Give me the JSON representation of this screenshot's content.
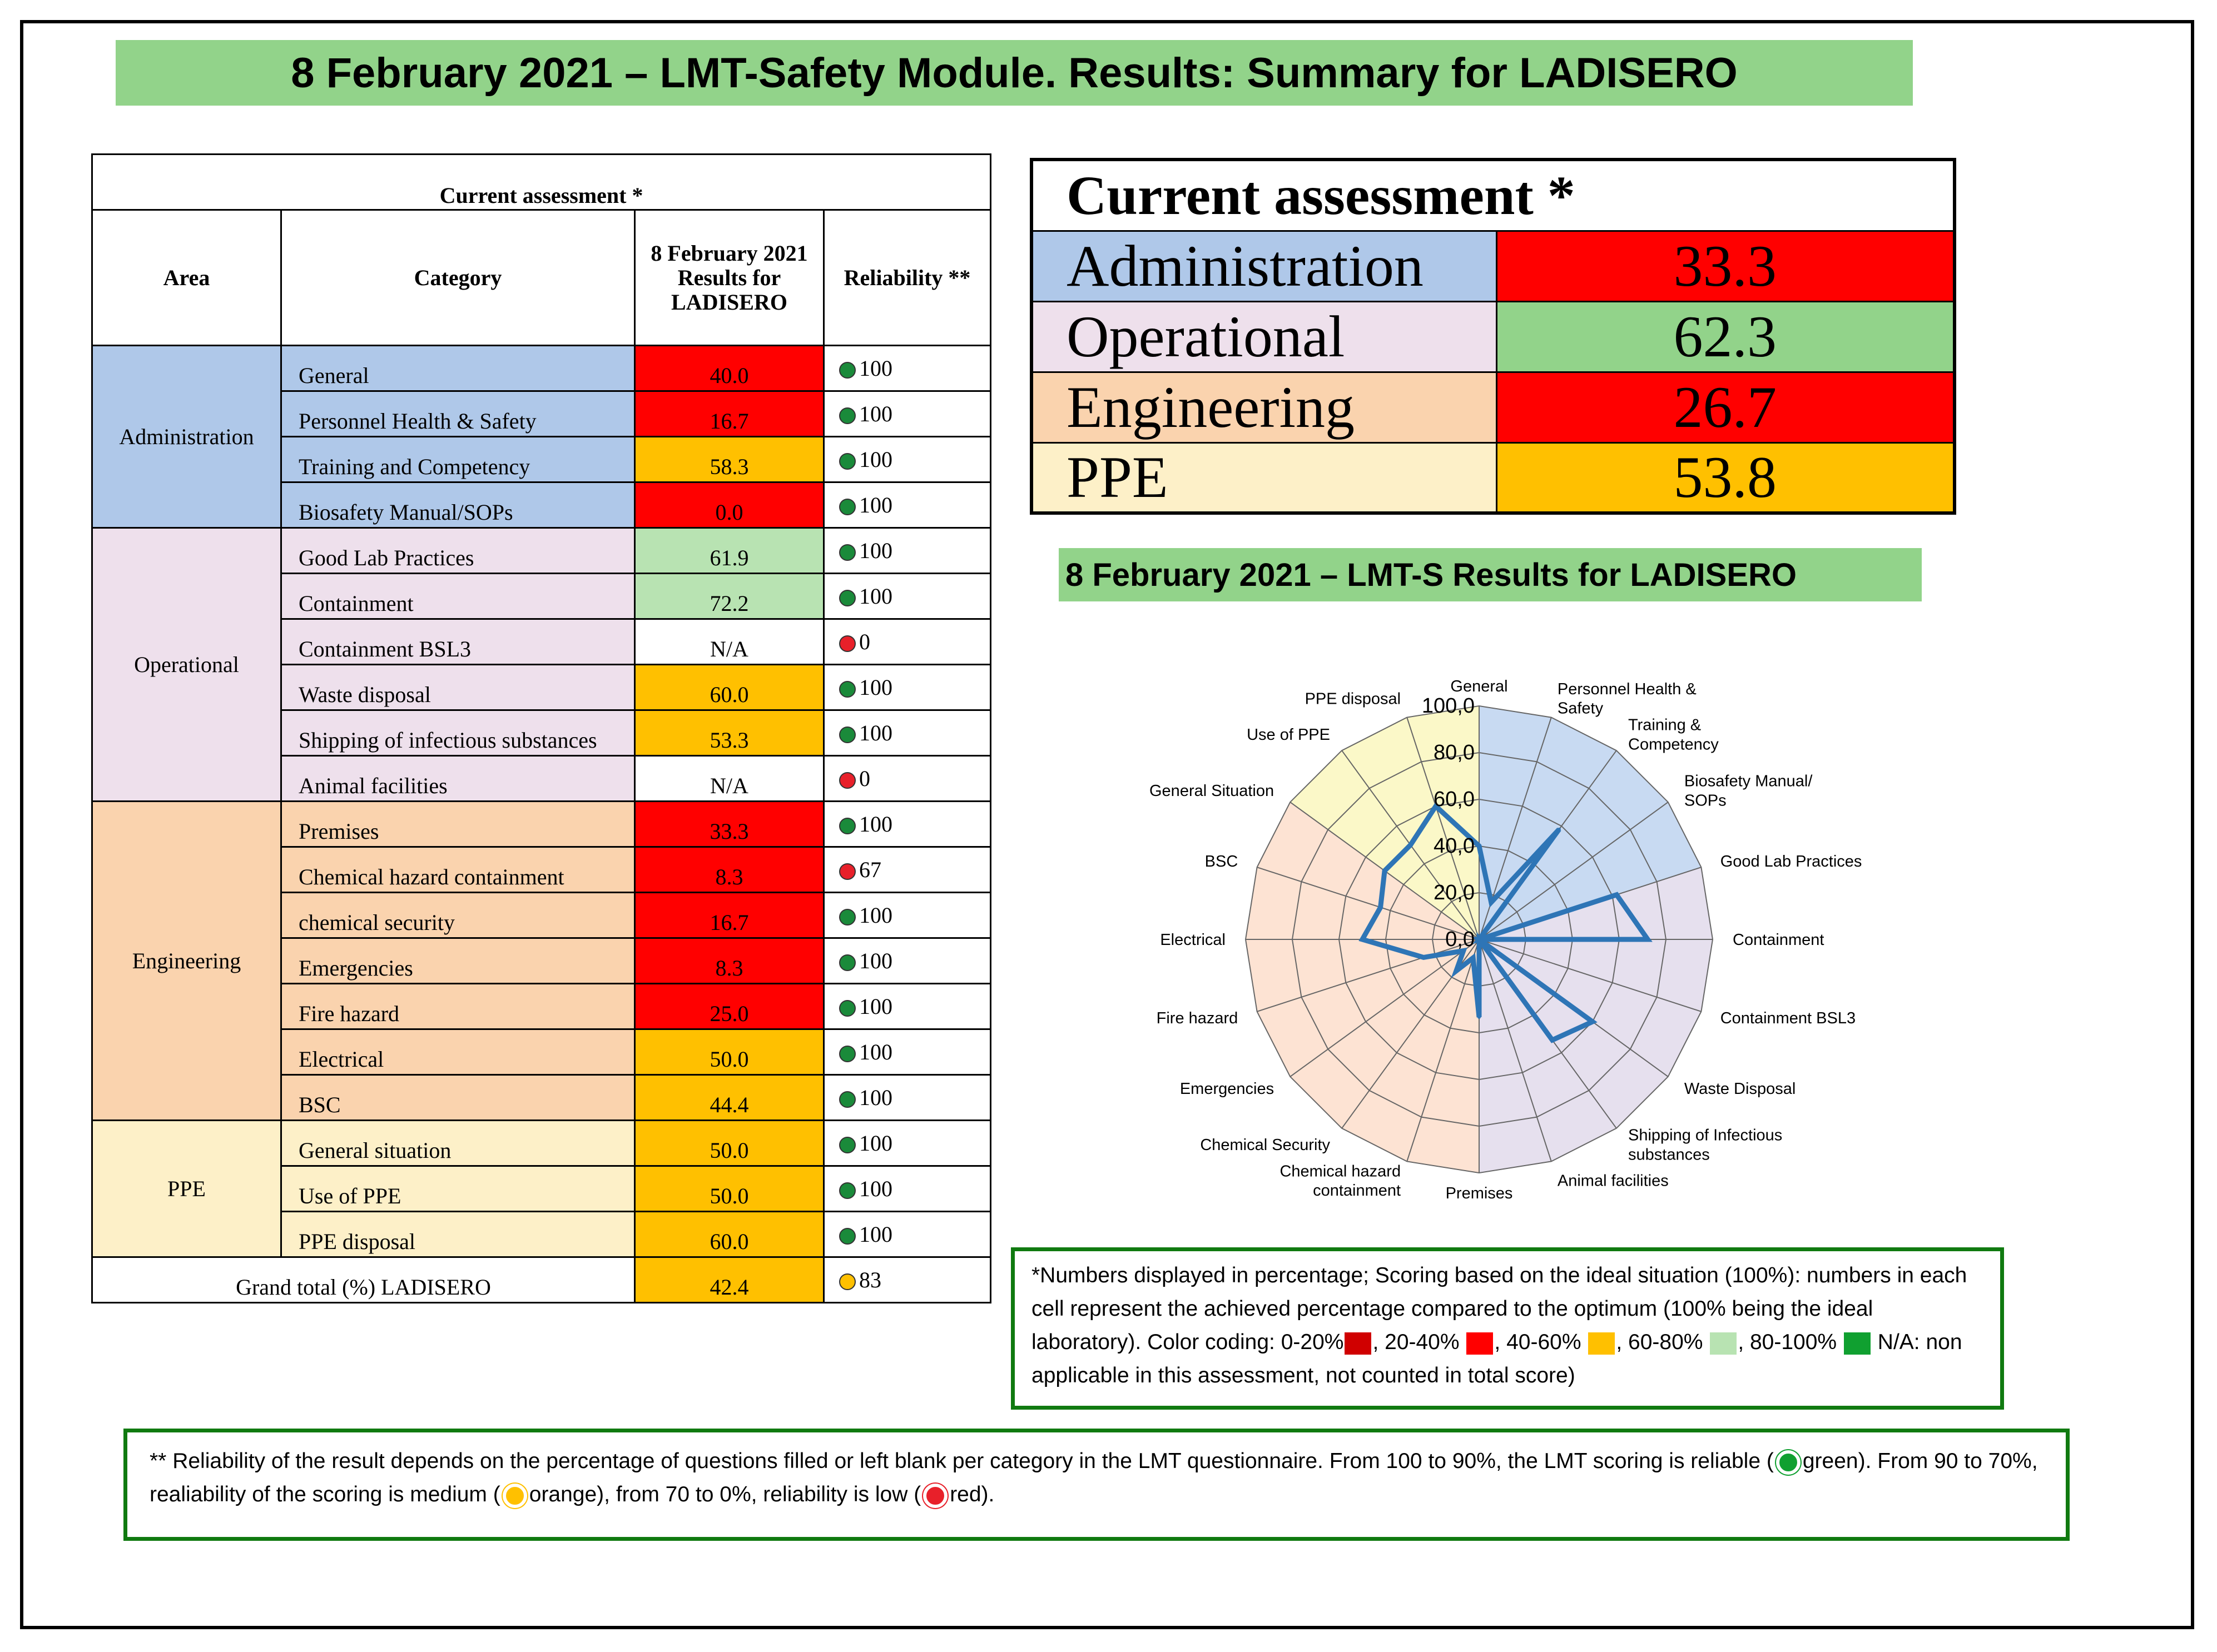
{
  "title": "8 February 2021 – LMT-Safety Module. Results: Summary for LADISERO",
  "table": {
    "caption": "Current assessment *",
    "headers": {
      "area": "Area",
      "category": "Category",
      "result": "8 February 2021 Results for LADISERO",
      "reliability": "Reliability **"
    },
    "areas": [
      {
        "name": "Administration",
        "rows": [
          {
            "category": "General",
            "value": "40.0",
            "reliability": "100",
            "color": "#ff0000",
            "dot": "#1a8a3a"
          },
          {
            "category": "Personnel Health & Safety",
            "value": "16.7",
            "reliability": "100",
            "color": "#ff0000",
            "dot": "#1a8a3a"
          },
          {
            "category": "Training and Competency",
            "value": "58.3",
            "reliability": "100",
            "color": "#ffc000",
            "dot": "#1a8a3a"
          },
          {
            "category": "Biosafety Manual/SOPs",
            "value": "0.0",
            "reliability": "100",
            "color": "#ff0000",
            "dot": "#1a8a3a"
          }
        ]
      },
      {
        "name": "Operational",
        "rows": [
          {
            "category": "Good Lab Practices",
            "value": "61.9",
            "reliability": "100",
            "color": "#b8e3b2",
            "dot": "#1a8a3a"
          },
          {
            "category": "Containment",
            "value": "72.2",
            "reliability": "100",
            "color": "#b8e3b2",
            "dot": "#1a8a3a"
          },
          {
            "category": "Containment BSL3",
            "value": "N/A",
            "reliability": "0",
            "color": "#ffffff",
            "dot": "#e8202a"
          },
          {
            "category": "Waste disposal",
            "value": "60.0",
            "reliability": "100",
            "color": "#ffc000",
            "dot": "#1a8a3a"
          },
          {
            "category": "Shipping of infectious substances",
            "value": "53.3",
            "reliability": "100",
            "color": "#ffc000",
            "dot": "#1a8a3a"
          },
          {
            "category": "Animal facilities",
            "value": "N/A",
            "reliability": "0",
            "color": "#ffffff",
            "dot": "#e8202a"
          }
        ]
      },
      {
        "name": "Engineering",
        "rows": [
          {
            "category": "Premises",
            "value": "33.3",
            "reliability": "100",
            "color": "#ff0000",
            "dot": "#1a8a3a"
          },
          {
            "category": "Chemical hazard containment",
            "value": "8.3",
            "reliability": "67",
            "color": "#ff0000",
            "dot": "#e8202a"
          },
          {
            "category": "chemical security",
            "value": "16.7",
            "reliability": "100",
            "color": "#ff0000",
            "dot": "#1a8a3a"
          },
          {
            "category": "Emergencies",
            "value": "8.3",
            "reliability": "100",
            "color": "#ff0000",
            "dot": "#1a8a3a"
          },
          {
            "category": "Fire hazard",
            "value": "25.0",
            "reliability": "100",
            "color": "#ff0000",
            "dot": "#1a8a3a"
          },
          {
            "category": "Electrical",
            "value": "50.0",
            "reliability": "100",
            "color": "#ffc000",
            "dot": "#1a8a3a"
          },
          {
            "category": "BSC",
            "value": "44.4",
            "reliability": "100",
            "color": "#ffc000",
            "dot": "#1a8a3a"
          }
        ]
      },
      {
        "name": "PPE",
        "rows": [
          {
            "category": "General situation",
            "value": "50.0",
            "reliability": "100",
            "color": "#ffc000",
            "dot": "#1a8a3a"
          },
          {
            "category": "Use of PPE",
            "value": "50.0",
            "reliability": "100",
            "color": "#ffc000",
            "dot": "#1a8a3a"
          },
          {
            "category": "PPE disposal",
            "value": "60.0",
            "reliability": "100",
            "color": "#ffc000",
            "dot": "#1a8a3a"
          }
        ]
      }
    ],
    "grand_total": {
      "label": "Grand total (%) LADISERO",
      "value": "42.4",
      "reliability": "83",
      "color": "#ffc000",
      "dot": "#ffc000"
    }
  },
  "summary": {
    "title": "Current assessment *",
    "rows": [
      {
        "area": "Administration",
        "value": "33.3",
        "area_color": "#afc8e9",
        "value_color": "#ff0000"
      },
      {
        "area": "Operational",
        "value": "62.3",
        "area_color": "#eee0ec",
        "value_color": "#92d38a"
      },
      {
        "area": "Engineering",
        "value": "26.7",
        "area_color": "#fad3ae",
        "value_color": "#ff0000"
      },
      {
        "area": "PPE",
        "value": "53.8",
        "area_color": "#fdf0c8",
        "value_color": "#ffc000"
      }
    ]
  },
  "chart_title": "8 February 2021 – LMT-S Results for LADISERO",
  "chart_data": {
    "type": "radar",
    "title": "8 February 2021 – LMT-S Results for LADISERO",
    "categories": [
      "General",
      "Personnel Health & Safety",
      "Training & Competency",
      "Biosafety Manual/ SOPs",
      "Good Lab Practices",
      "Containment",
      "Containment BSL3",
      "Waste Disposal",
      "Shipping of Infectious substances",
      "Animal facilities",
      "Premises",
      "Chemical hazard containment",
      "Chemical Security",
      "Emergencies",
      "Fire hazard",
      "Electrical",
      "BSC",
      "General Situation",
      "Use of PPE",
      "PPE disposal"
    ],
    "values": [
      40.0,
      16.7,
      58.3,
      0.0,
      61.9,
      72.2,
      0.0,
      60.0,
      53.3,
      0.0,
      33.3,
      8.3,
      16.7,
      8.3,
      25.0,
      50.0,
      44.4,
      50.0,
      50.0,
      60.0
    ],
    "rlim": [
      0,
      100
    ],
    "ticks": [
      "0,0",
      "20,0",
      "40,0",
      "60,0",
      "80,0",
      "100,0"
    ],
    "series_color": "#2e75b6",
    "sector_colors": {
      "Administration": "#c8daf2",
      "Operational": "#e6e0ee",
      "Engineering": "#fde3d3",
      "PPE": "#fbf8c8"
    }
  },
  "notes": {
    "percent_text_1": "*Numbers displayed in percentage; Scoring based on the ideal situation (100%): numbers in each cell represent the achieved percentage compared to the optimum (100% being the ideal laboratory). Color coding: 0-20%",
    "percent_text_2": ", 20-40%",
    "percent_text_3": ", 40-60%",
    "percent_text_4": ", 60-80%",
    "percent_text_5": ", 80-100%",
    "percent_text_6": "N/A: non applicable in this assessment, not counted in total score)",
    "swatches": [
      "#d00000",
      "#ff0000",
      "#ffc000",
      "#b8e3b2",
      "#10a030"
    ],
    "reliability_text_1": "** Reliability of the result depends on the percentage of questions filled or left blank per category in the LMT questionnaire. From 100 to 90%, the LMT scoring is reliable (",
    "reliability_text_2": "green). From 90 to 70%, realiability of the scoring is medium (",
    "reliability_text_3": "orange), from 70 to 0%, reliability is low (",
    "reliability_text_4": "red).",
    "dot_colors": [
      "#10a030",
      "#ffc000",
      "#e8202a"
    ]
  }
}
